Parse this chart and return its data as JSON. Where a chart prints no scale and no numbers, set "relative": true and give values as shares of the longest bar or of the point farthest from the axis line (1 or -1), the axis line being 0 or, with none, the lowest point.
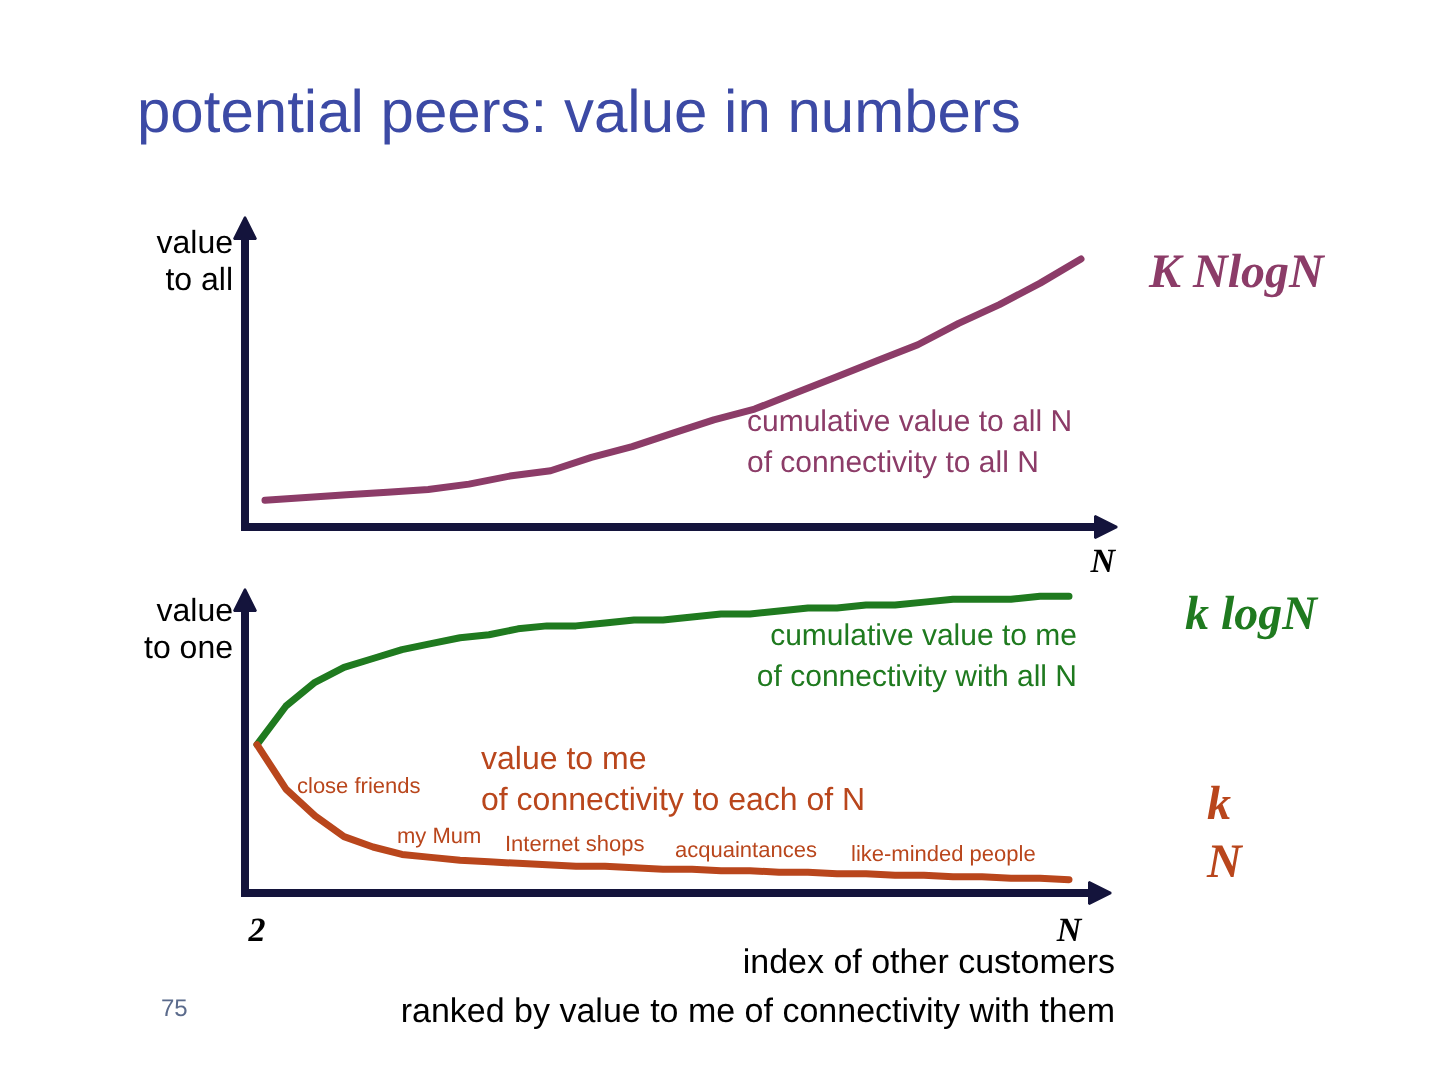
{
  "chart_data": [
    {
      "type": "line",
      "title": "potential peers: value in numbers",
      "ylabel": "value\nto all",
      "xlabel": "N",
      "relative": true,
      "tick_labels": false,
      "line_style": "solid",
      "categories": [
        null,
        null,
        null,
        null,
        null,
        null,
        null,
        null,
        null,
        null,
        null,
        null,
        null,
        null,
        null,
        null,
        null,
        null,
        null,
        null,
        null
      ],
      "series": [
        {
          "name": "K NlogN",
          "color": "#8c3c68",
          "values": [
            0.1,
            0.11,
            0.12,
            0.13,
            0.14,
            0.16,
            0.19,
            0.21,
            0.26,
            0.3,
            0.35,
            0.4,
            0.44,
            0.5,
            0.56,
            0.62,
            0.68,
            0.76,
            0.83,
            0.91,
            1.0
          ]
        }
      ],
      "annotations": [
        "cumulative value to all N\nof connectivity to all N"
      ]
    },
    {
      "type": "line",
      "ylabel": "value\nto one",
      "xlabel": "index of other customers\nranked by value to me of connectivity with them",
      "relative": true,
      "tick_labels": "x",
      "line_style": "solid",
      "categories": [
        "2",
        null,
        null,
        null,
        null,
        null,
        null,
        null,
        null,
        null,
        null,
        null,
        null,
        null,
        null,
        null,
        null,
        null,
        null,
        null,
        null,
        null,
        null,
        null,
        null,
        null,
        null,
        null,
        "N"
      ],
      "series": [
        {
          "name": "k logN",
          "color": "#1f7a1f",
          "values": [
            0.5,
            0.63,
            0.71,
            0.76,
            0.79,
            0.82,
            0.84,
            0.86,
            0.87,
            0.89,
            0.9,
            0.9,
            0.91,
            0.92,
            0.92,
            0.93,
            0.94,
            0.94,
            0.95,
            0.96,
            0.96,
            0.97,
            0.97,
            0.98,
            0.99,
            0.99,
            0.99,
            1.0,
            1.0
          ]
        },
        {
          "name": "k\nN",
          "color": "#b9461c",
          "values": [
            0.5,
            0.35,
            0.26,
            0.19,
            0.155,
            0.13,
            0.12,
            0.11,
            0.105,
            0.1,
            0.095,
            0.09,
            0.09,
            0.085,
            0.08,
            0.08,
            0.075,
            0.075,
            0.07,
            0.07,
            0.065,
            0.065,
            0.06,
            0.06,
            0.055,
            0.055,
            0.05,
            0.05,
            0.045
          ]
        }
      ],
      "annotations": [
        "cumulative value to me\nof connectivity with all N",
        "value to me\nof connectivity to each of N",
        "close friends",
        "my Mum",
        "Internet shops",
        "acquaintances",
        "like-minded people",
        "75"
      ]
    }
  ]
}
